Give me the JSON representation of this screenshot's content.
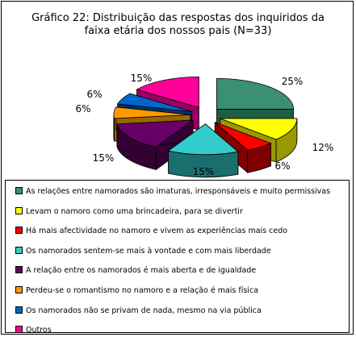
{
  "chart_data": {
    "type": "pie",
    "title": "Gráfico 22: Distribuição das respostas dos inquiridos da faixa etária dos nossos pais (N=33)",
    "title_lines": [
      "Gráfico 22: Distribuição das respostas dos inquiridos da",
      "faixa etária dos nossos pais (N=33)"
    ],
    "slices": [
      {
        "label": "As relações entre namorados são imaturas, irresponsáveis e muito permissivas",
        "value": 25,
        "value_label": "25%",
        "color": "#3a9070",
        "side": "#1e5e44"
      },
      {
        "label": "Levam o namoro como uma brincadeira, para se divertir",
        "value": 12,
        "value_label": "12%",
        "color": "#ffff00",
        "side": "#999900"
      },
      {
        "label": "Há mais afectividade no namoro e vivem as experiências mais cedo",
        "value": 6,
        "value_label": "6%",
        "color": "#ff0000",
        "side": "#800000"
      },
      {
        "label": "Os namorados sentem-se mais à vontade e com mais liberdade",
        "value": 15,
        "value_label": "15%",
        "color": "#33cccc",
        "side": "#1b6e6e"
      },
      {
        "label": "A relação entre os namorados é mais aberta e de igualdade",
        "value": 15,
        "value_label": "15%",
        "color": "#660066",
        "side": "#330033"
      },
      {
        "label": "Perdeu-se o romantismo no namoro e a relação é mais física",
        "value": 6,
        "value_label": "6%",
        "color": "#ff9900",
        "side": "#996600"
      },
      {
        "label": "Os namorados não se privam de nada, mesmo na via pública",
        "value": 6,
        "value_label": "6%",
        "color": "#0066cc",
        "side": "#003366"
      },
      {
        "label": "Outros",
        "value": 15,
        "value_label": "15%",
        "color": "#ff0099",
        "side": "#990066"
      }
    ],
    "legend_position": "bottom"
  }
}
